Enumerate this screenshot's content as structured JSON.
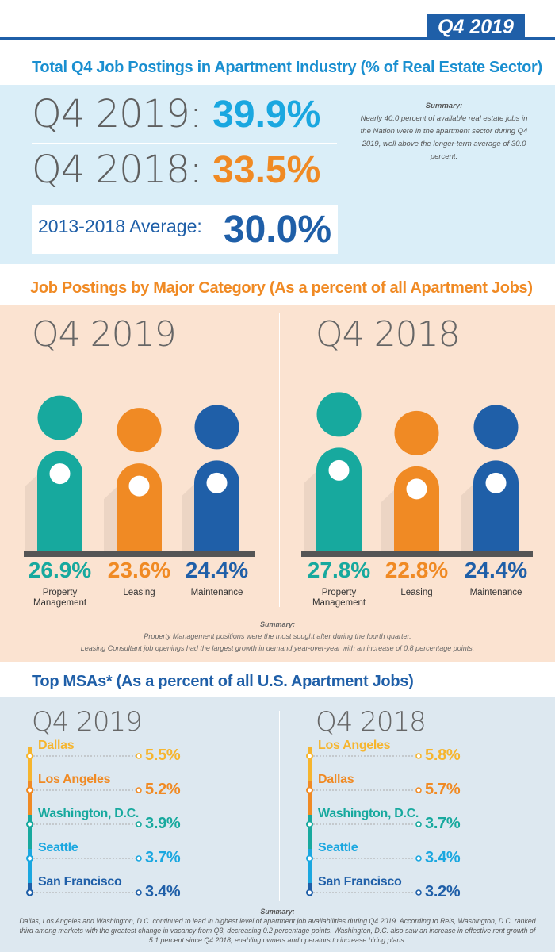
{
  "header": {
    "quarter_badge": "Q4 2019"
  },
  "section1": {
    "title": "Total Q4 Job Postings in Apartment Industry (% of Real Estate Sector)",
    "row2019_label": "Q4 2019: ",
    "row2019_value": "39.9%",
    "row2018_label": "Q4 2018: ",
    "row2018_value": "33.5%",
    "avg_label": "2013-2018 Average:",
    "avg_value": "30.0%",
    "summary_title": "Summary:",
    "summary_text": "Nearly 40.0 percent of available real estate jobs in the Nation were in the apartment sector during Q4 2019, well above the longer-term average of 30.0 percent."
  },
  "section2": {
    "title": "Job Postings by Major Category (As a percent of all Apartment Jobs)",
    "summary_title": "Summary:",
    "summary_line1": "Property Management positions were the most sought after during the fourth quarter.",
    "summary_line2": "Leasing Consultant job openings had the largest growth in demand year-over-year with an increase of 0.8 percentage points."
  },
  "section3": {
    "title": "Top MSAs* (As a percent of all U.S. Apartment Jobs)",
    "summary_title": "Summary:",
    "summary_text": "Dallas, Los Angeles and Washington, D.C. continued to lead in highest level of apartment job availabilities during Q4 2019. According to Reis, Washington, D.C. ranked third among markets with the greatest change in vacancy from Q3, decreasing 0.2 percentage points. Washington, D.C. also saw an increase in effective rent growth of 5.1 percent since Q4 2018, enabling owners and operators to increase hiring plans."
  },
  "colors": {
    "teal": "#17a99e",
    "orange": "#f08a24",
    "blue": "#1f5fa8",
    "light_blue": "#1aa7e0",
    "yellow": "#f6b52e"
  },
  "chart_data": [
    {
      "type": "bar",
      "title": "Q4 2019",
      "categories": [
        "Property Management",
        "Leasing",
        "Maintenance"
      ],
      "values": [
        26.9,
        23.6,
        24.4
      ],
      "labels": [
        "26.9%",
        "23.6%",
        "24.4%"
      ],
      "unit": "%"
    },
    {
      "type": "bar",
      "title": "Q4 2018",
      "categories": [
        "Property Management",
        "Leasing",
        "Maintenance"
      ],
      "values": [
        27.8,
        22.8,
        24.4
      ],
      "labels": [
        "27.8%",
        "22.8%",
        "24.4%"
      ],
      "unit": "%"
    },
    {
      "type": "table",
      "title": "Q4 2019",
      "categories": [
        "Dallas",
        "Los Angeles",
        "Washington, D.C.",
        "Seattle",
        "San Francisco"
      ],
      "values": [
        5.5,
        5.2,
        3.9,
        3.7,
        3.4
      ],
      "labels": [
        "5.5%",
        "5.2%",
        "3.9%",
        "3.7%",
        "3.4%"
      ]
    },
    {
      "type": "table",
      "title": "Q4 2018",
      "categories": [
        "Los Angeles",
        "Dallas",
        "Washington, D.C.",
        "Seattle",
        "San Francisco"
      ],
      "values": [
        5.8,
        5.7,
        3.7,
        3.4,
        3.2
      ],
      "labels": [
        "5.8%",
        "5.7%",
        "3.7%",
        "3.4%",
        "3.2%"
      ]
    }
  ]
}
